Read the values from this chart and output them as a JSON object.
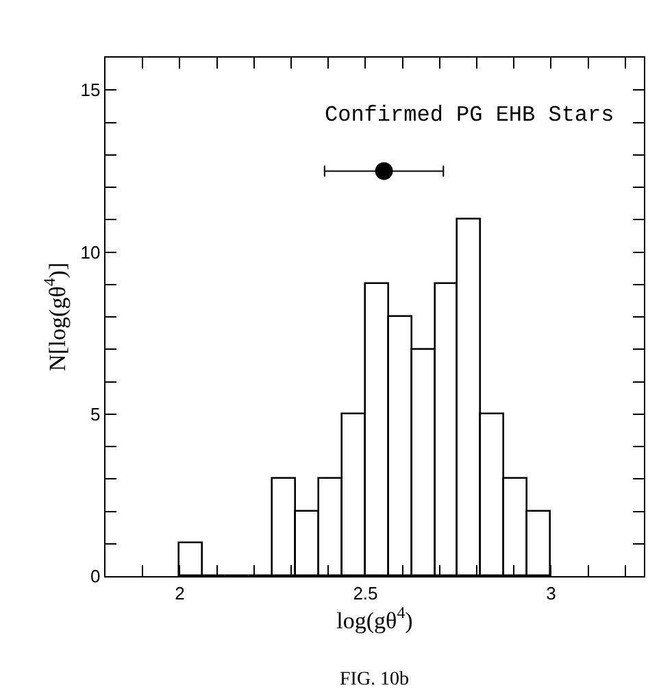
{
  "chart_data": {
    "type": "histogram",
    "xlabel": "log(gθ$^{4}$)",
    "ylabel": "N[log(gθ$^{4}$)]",
    "annotations": [
      "Confirmed PG EHB Stars",
      "FIG. 10b"
    ],
    "bins": [
      2.0,
      2.0625,
      2.125,
      2.1875,
      2.25,
      2.3125,
      2.375,
      2.4375,
      2.5,
      2.5625,
      2.625,
      2.6875,
      2.75,
      2.8125,
      2.875,
      2.9375,
      3.0
    ],
    "values": [
      1,
      0,
      0,
      0,
      3,
      2,
      3,
      5,
      9,
      8,
      7,
      9,
      11,
      5,
      3,
      2
    ],
    "color": "#000000",
    "series": [
      {
        "type": "scatter",
        "color": "#000000",
        "x": [
          2.55
        ],
        "values": [
          12.5
        ],
        "xerrors": [
          [
            2.39,
            2.71
          ]
        ]
      }
    ],
    "xlim": [
      1.8,
      3.25
    ],
    "xticks": [
      {
        "value": 1.9,
        "label": null
      },
      2,
      {
        "value": 2.1,
        "label": null
      },
      {
        "value": 2.2,
        "label": null
      },
      {
        "value": 2.3,
        "label": null
      },
      {
        "value": 2.4,
        "label": null
      },
      2.5,
      {
        "value": 2.6,
        "label": null
      },
      {
        "value": 2.7,
        "label": null
      },
      {
        "value": 2.8,
        "label": null
      },
      {
        "value": 2.9,
        "label": null
      },
      3,
      {
        "value": 3.1,
        "label": null
      },
      {
        "value": 3.2,
        "label": null
      }
    ],
    "ylim": [
      0,
      16
    ],
    "yticks": [
      0,
      {
        "value": 1,
        "label": null
      },
      {
        "value": 2,
        "label": null
      },
      {
        "value": 3,
        "label": null
      },
      {
        "value": 4,
        "label": null
      },
      5,
      {
        "value": 6,
        "label": null
      },
      {
        "value": 7,
        "label": null
      },
      {
        "value": 8,
        "label": null
      },
      {
        "value": 9,
        "label": null
      },
      10,
      {
        "value": 11,
        "label": null
      },
      {
        "value": 12,
        "label": null
      },
      {
        "value": 13,
        "label": null
      },
      {
        "value": 14,
        "label": null
      },
      15
    ],
    "marker": "circle"
  }
}
